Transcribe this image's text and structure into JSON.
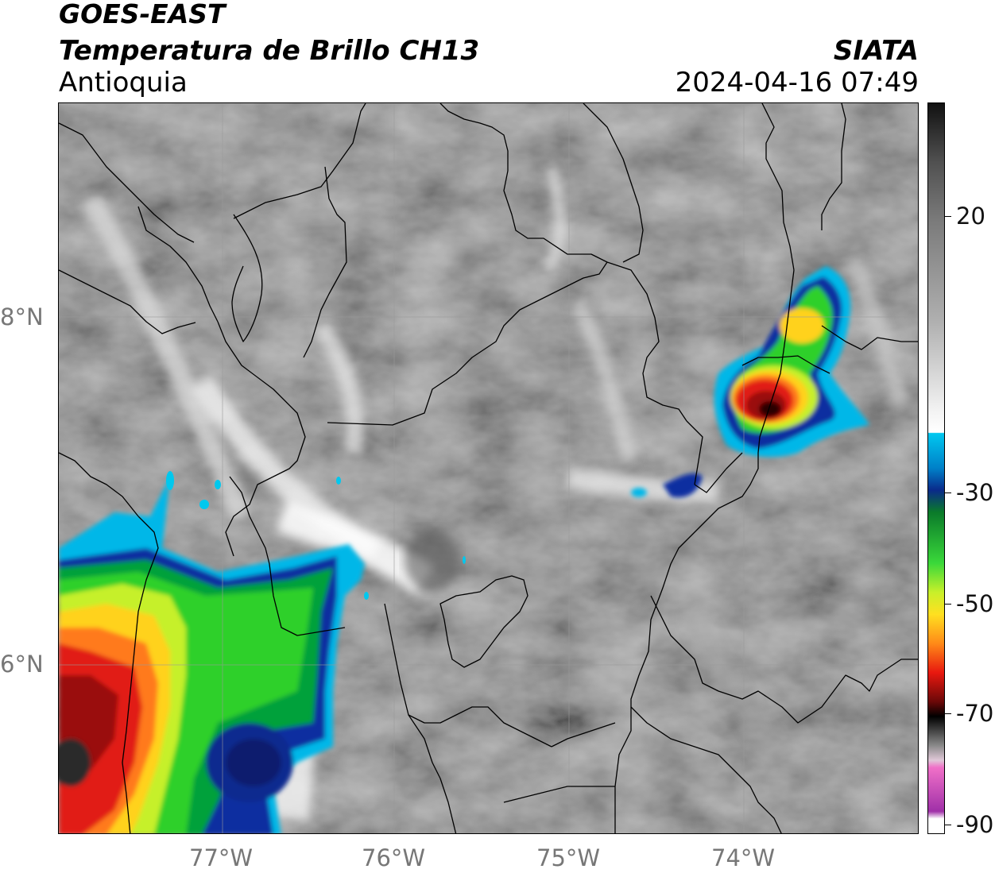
{
  "header": {
    "line1": "GOES-EAST",
    "line2": "Temperatura de Brillo CH13",
    "line3": "Antioquia",
    "org": "SIATA",
    "timestamp": "2024-04-16 07:49"
  },
  "axes": {
    "lon_labels": [
      "77°W",
      "76°W",
      "75°W",
      "74°W"
    ],
    "lat_labels": [
      "8°N",
      "6°N"
    ]
  },
  "colorbar": {
    "tick_labels": [
      "20",
      "-30",
      "-50",
      "-70",
      "-90"
    ]
  }
}
